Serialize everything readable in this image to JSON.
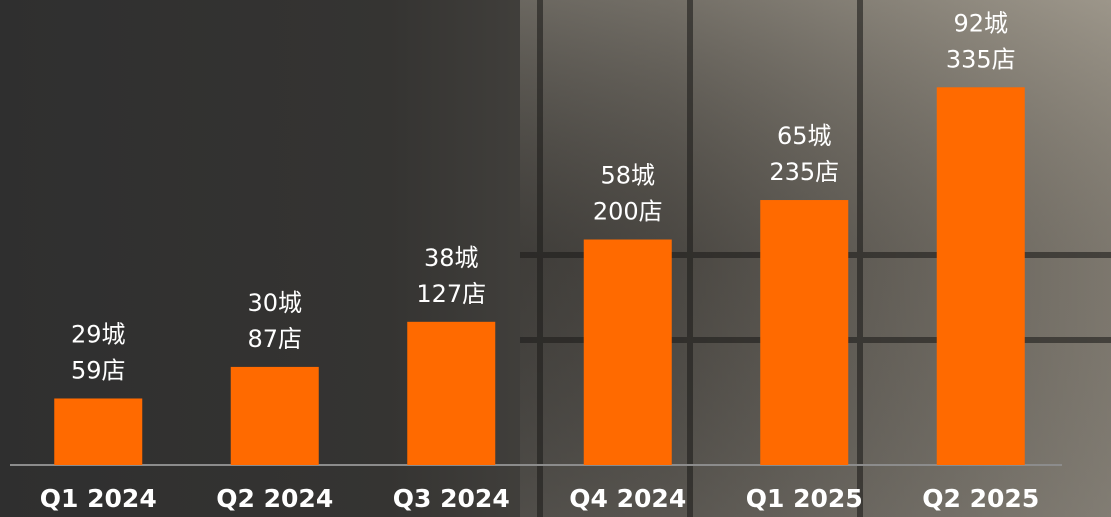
{
  "chart_data": {
    "type": "bar",
    "categories": [
      "Q1 2024",
      "Q2 2024",
      "Q3 2024",
      "Q4 2024",
      "Q1 2025",
      "Q2 2025"
    ],
    "values": [
      59,
      87,
      127,
      200,
      235,
      335
    ],
    "value_labels": [
      "59店",
      "87店",
      "127店",
      "200店",
      "235店",
      "335店"
    ],
    "city_values": [
      29,
      30,
      38,
      58,
      65,
      92
    ],
    "city_labels": [
      "29城",
      "30城",
      "38城",
      "58城",
      "65城",
      "92城"
    ],
    "color": "#ff6a00",
    "ylim": [
      0,
      400
    ]
  }
}
